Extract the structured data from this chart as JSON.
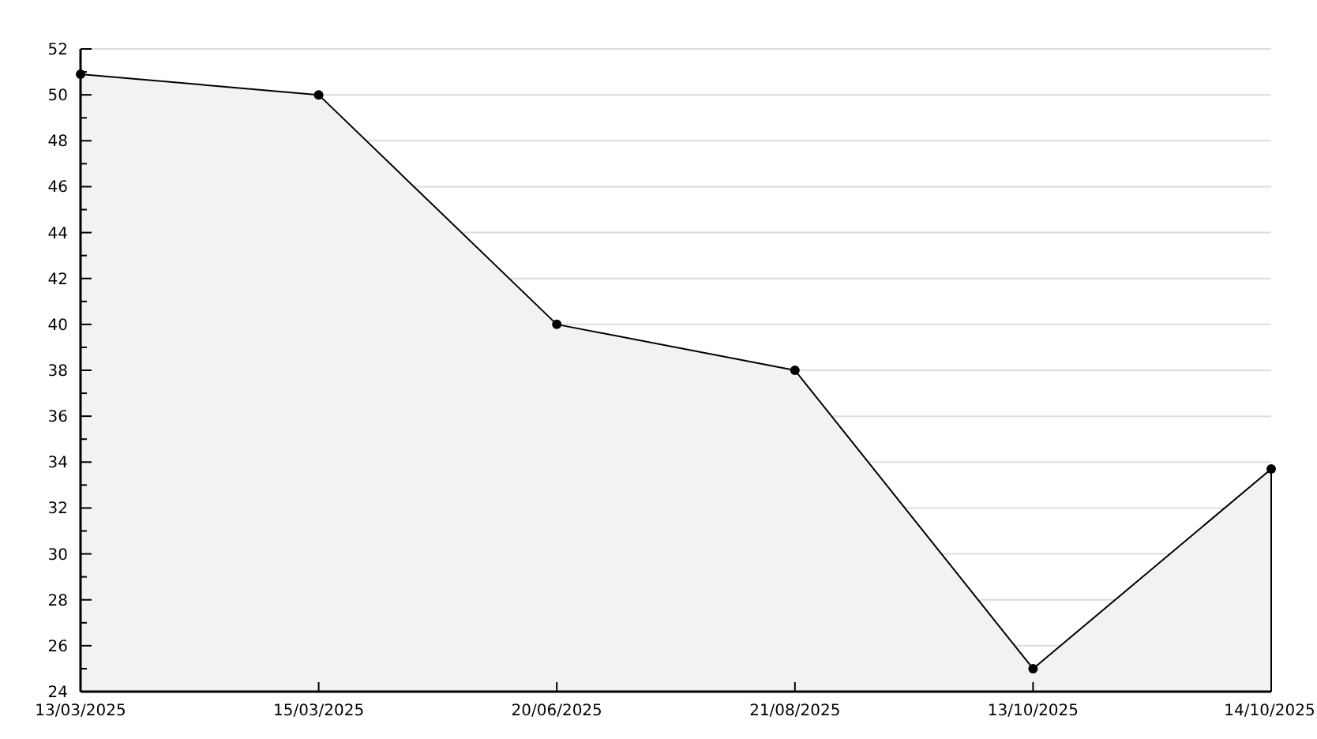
{
  "chart_data": {
    "type": "area",
    "categories": [
      "13/03/2025",
      "15/03/2025",
      "20/06/2025",
      "21/08/2025",
      "13/10/2025",
      "14/10/2025"
    ],
    "series": [
      {
        "color": "#000000",
        "values": [
          50.9,
          50,
          40,
          38,
          25,
          33.7
        ]
      }
    ],
    "ylim": [
      24,
      52
    ],
    "yticks": [
      24,
      {
        "value": 25,
        "label": null
      },
      26,
      {
        "value": 27,
        "label": null
      },
      28,
      {
        "value": 29,
        "label": null
      },
      30,
      {
        "value": 31,
        "label": null
      },
      32,
      {
        "value": 33,
        "label": null
      },
      34,
      {
        "value": 35,
        "label": null
      },
      36,
      {
        "value": 37,
        "label": null
      },
      38,
      {
        "value": 39,
        "label": null
      },
      40,
      {
        "value": 41,
        "label": null
      },
      42,
      {
        "value": 43,
        "label": null
      },
      44,
      {
        "value": 45,
        "label": null
      },
      46,
      {
        "value": 47,
        "label": null
      },
      48,
      {
        "value": 49,
        "label": null
      },
      50,
      {
        "value": 51,
        "label": null
      },
      52
    ],
    "grid": "y",
    "marker": "circle",
    "line_style": "solid"
  }
}
